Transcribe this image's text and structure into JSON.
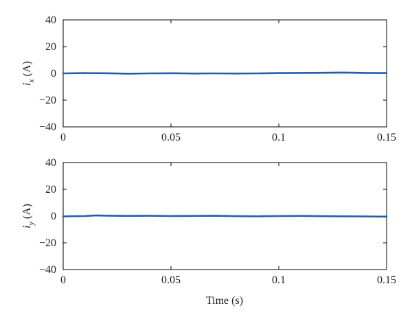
{
  "chart_data": [
    {
      "type": "line",
      "xlabel": "",
      "ylabel": {
        "symbol": "i",
        "subscript": "x",
        "unit": "(A)"
      },
      "xlim": [
        0,
        0.15
      ],
      "ylim": [
        -40,
        40
      ],
      "xticks": [
        0,
        0.05,
        0.1,
        0.15
      ],
      "xtick_labels": [
        "0",
        "0.05",
        "0.1",
        "0.15"
      ],
      "yticks": [
        40,
        20,
        0,
        -20,
        -40
      ],
      "ytick_labels": [
        "40",
        "20",
        "0",
        "−20",
        "−40"
      ],
      "grid": false,
      "series": [
        {
          "color": "#1f5fa6",
          "x": [
            0,
            0.01,
            0.02,
            0.03,
            0.04,
            0.05,
            0.06,
            0.07,
            0.08,
            0.09,
            0.1,
            0.11,
            0.12,
            0.13,
            0.14,
            0.15
          ],
          "y": [
            0,
            0.2,
            0.1,
            -0.2,
            0.0,
            0.1,
            -0.1,
            0.0,
            -0.1,
            0.0,
            0.2,
            0.3,
            0.4,
            0.6,
            0.3,
            0.2
          ]
        }
      ]
    },
    {
      "type": "line",
      "xlabel": "Time (s)",
      "ylabel": {
        "symbol": "i",
        "subscript": "y",
        "unit": "(A)"
      },
      "xlim": [
        0,
        0.15
      ],
      "ylim": [
        -40,
        40
      ],
      "xticks": [
        0,
        0.05,
        0.1,
        0.15
      ],
      "xtick_labels": [
        "0",
        "0.05",
        "0.1",
        "0.15"
      ],
      "yticks": [
        40,
        20,
        0,
        -20,
        -40
      ],
      "ytick_labels": [
        "40",
        "20",
        "0",
        "−20",
        "−40"
      ],
      "grid": false,
      "series": [
        {
          "color": "#1f5fa6",
          "x": [
            0,
            0.01,
            0.015,
            0.02,
            0.03,
            0.04,
            0.05,
            0.06,
            0.07,
            0.08,
            0.09,
            0.1,
            0.11,
            0.12,
            0.13,
            0.14,
            0.15
          ],
          "y": [
            -0.3,
            0.0,
            0.5,
            0.3,
            0.1,
            0.2,
            0.0,
            0.1,
            0.2,
            -0.1,
            -0.2,
            0.0,
            0.1,
            -0.1,
            -0.2,
            -0.3,
            -0.5
          ]
        }
      ]
    }
  ]
}
